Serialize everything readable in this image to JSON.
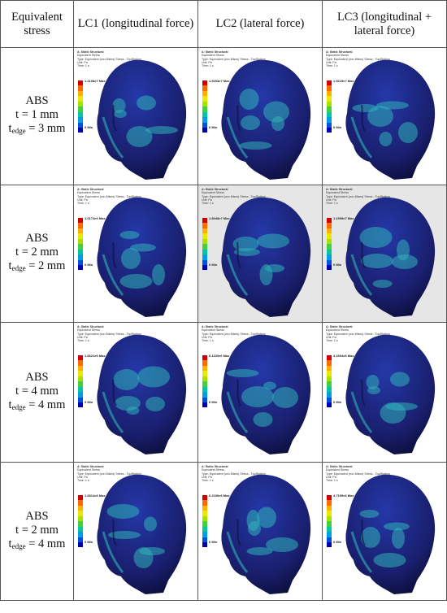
{
  "header": {
    "col0": "Equivalent stress",
    "col1": "LC1 (longitudinal force)",
    "col2": "LC2 (lateral force)",
    "col3": "LC3 (longitudinal + lateral force)"
  },
  "rows": [
    {
      "material": "ABS",
      "t": "t = 1 mm",
      "tedge_prefix": "t",
      "tedge_sub": "edge",
      "tedge_val": " = 3 mm"
    },
    {
      "material": "ABS",
      "t": "t = 2 mm",
      "tedge_prefix": "t",
      "tedge_sub": "edge",
      "tedge_val": " = 2 mm"
    },
    {
      "material": "ABS",
      "t": "t = 4 mm",
      "tedge_prefix": "t",
      "tedge_sub": "edge",
      "tedge_val": " = 4 mm"
    },
    {
      "material": "ABS",
      "t": "t = 2 mm",
      "tedge_prefix": "t",
      "tedge_sub": "edge",
      "tedge_val": " = 4 mm"
    }
  ],
  "legend_text": {
    "title": "A: Static Structural",
    "line2": "Equivalent Stress",
    "line3": "Type: Equivalent (von-Mises) Stress - Top/Bottom",
    "line4": "Unit: Pa",
    "line5": "Time: 1 s",
    "min": "0 Min"
  },
  "maxima": [
    [
      "1.2108e7 Max",
      "1.5293e7 Max",
      "1.5219e7 Max"
    ],
    [
      "1.0174e6 Max",
      "1.8048e7 Max",
      "1.1995e7 Max"
    ],
    [
      "1.6621e6 Max",
      "6.1193e6 Max",
      "4.1664e6 Max"
    ],
    [
      "1.6814e6 Max",
      "6.2196e6 Max",
      "4.7199e6 Max"
    ]
  ],
  "grey_cells": [
    [
      1,
      1
    ],
    [
      1,
      2
    ]
  ],
  "colors": {
    "head_dark": "#1a1f6e",
    "head_mid": "#2438a8",
    "highlight": "#2fb3b8",
    "green": "#3fc48a",
    "scale": [
      "#d00000",
      "#ff6a00",
      "#ffb000",
      "#e8e800",
      "#a8e000",
      "#40d040",
      "#00c8a0",
      "#00a0e0",
      "#0050e0",
      "#0000b0"
    ]
  }
}
